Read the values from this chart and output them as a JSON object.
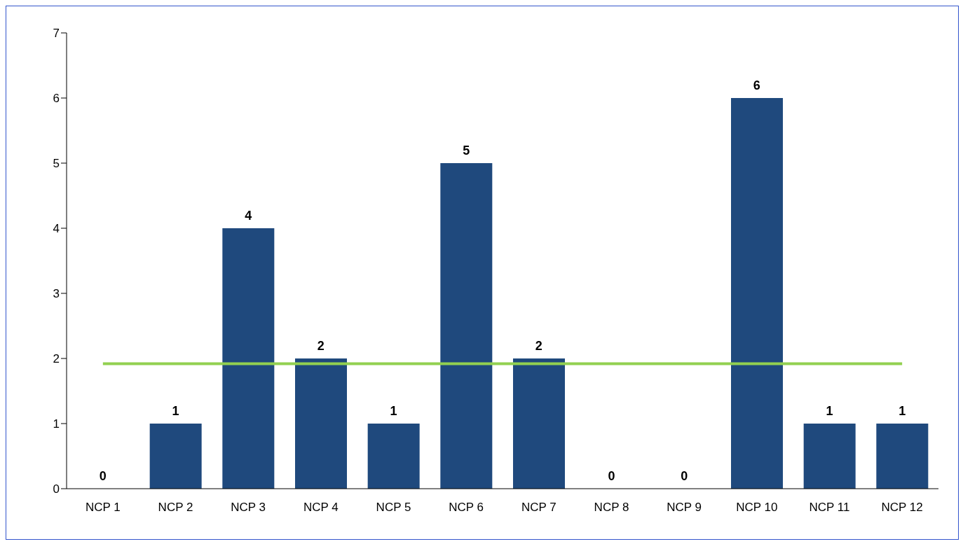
{
  "chart_data": {
    "type": "bar",
    "categories": [
      "NCP 1",
      "NCP 2",
      "NCP 3",
      "NCP 4",
      "NCP 5",
      "NCP 6",
      "NCP 7",
      "NCP 8",
      "NCP 9",
      "NCP 10",
      "NCP 11",
      "NCP 12"
    ],
    "series": [
      {
        "color": "#1f497d",
        "values": [
          0,
          1,
          4,
          2,
          1,
          5,
          2,
          0,
          0,
          6,
          1,
          1
        ],
        "value_labels": [
          "0",
          "1",
          "4",
          "2",
          "1",
          "5",
          "2",
          "0",
          "0",
          "6",
          "1",
          "1"
        ]
      },
      {
        "type": "line",
        "color": "#92d050",
        "values": [
          1.92,
          1.92,
          1.92,
          1.92,
          1.92,
          1.92,
          1.92,
          1.92,
          1.92,
          1.92,
          1.92,
          1.92
        ]
      }
    ],
    "ylim": [
      0,
      7
    ],
    "yticks": [
      0,
      1,
      2,
      3,
      4,
      5,
      6,
      7
    ],
    "grid": false,
    "legend": false,
    "marker": "none"
  }
}
